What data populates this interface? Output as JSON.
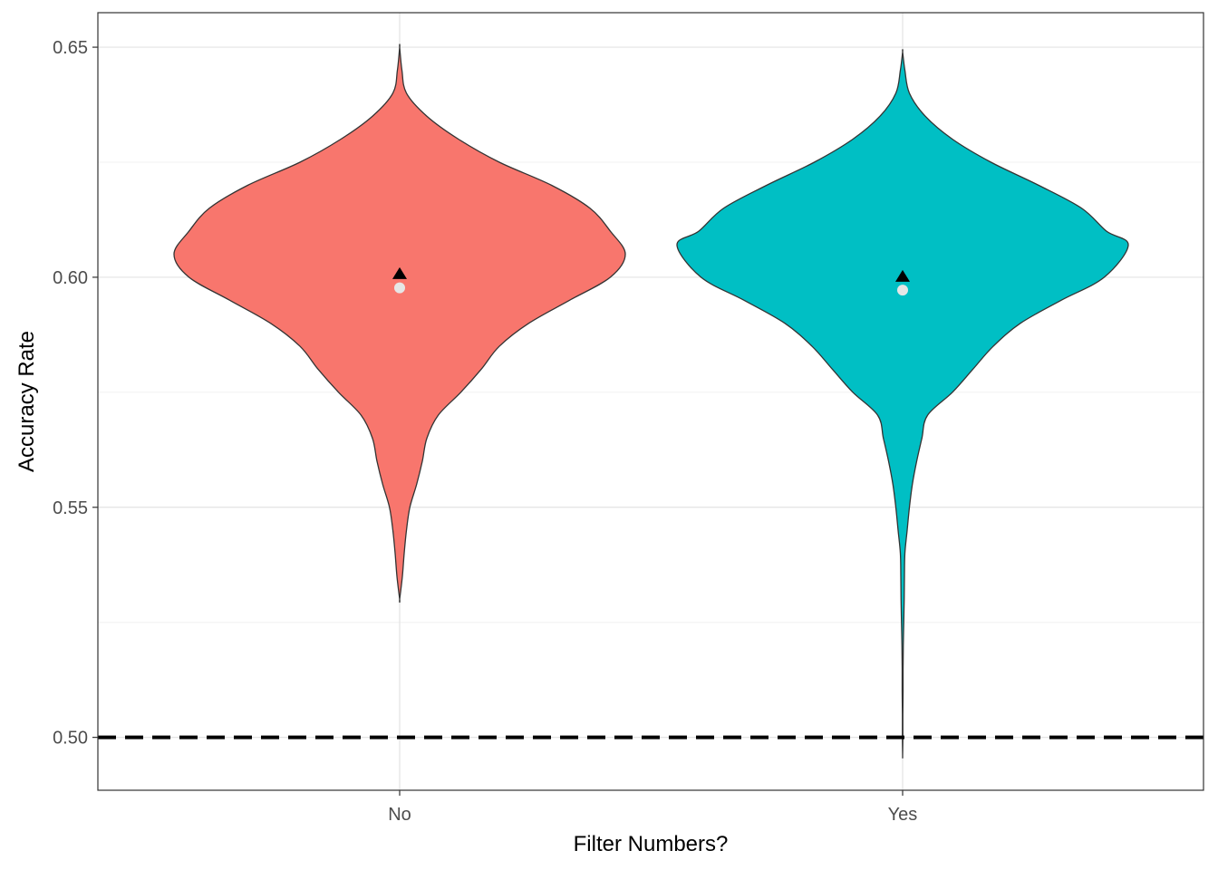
{
  "chart_data": {
    "type": "violin",
    "xlabel": "Filter Numbers?",
    "ylabel": "Accuracy Rate",
    "categories": [
      "No",
      "Yes"
    ],
    "ylim": [
      0.4885,
      0.6575
    ],
    "yticks": [
      0.5,
      0.55,
      0.6,
      0.65
    ],
    "ytick_labels": [
      "0.50",
      "0.55",
      "0.60",
      "0.65"
    ],
    "grid": true,
    "legend": "none",
    "colors": {
      "No": "#F8766D",
      "Yes": "#00BFC4",
      "outline": "#333333",
      "reference_line": "#000000",
      "median_point": "#e6e6e6",
      "mean_marker": "#000000"
    },
    "reference_line": {
      "y": 0.5,
      "style": "dashed"
    },
    "series": [
      {
        "category": "No",
        "mean": 0.6008,
        "median": 0.5977,
        "density": [
          [
            0.65,
            0.0
          ],
          [
            0.645,
            0.01
          ],
          [
            0.64,
            0.03
          ],
          [
            0.635,
            0.12
          ],
          [
            0.63,
            0.26
          ],
          [
            0.625,
            0.44
          ],
          [
            0.62,
            0.67
          ],
          [
            0.615,
            0.84
          ],
          [
            0.61,
            0.93
          ],
          [
            0.605,
            0.996
          ],
          [
            0.6,
            0.93
          ],
          [
            0.595,
            0.75
          ],
          [
            0.59,
            0.57
          ],
          [
            0.585,
            0.44
          ],
          [
            0.58,
            0.36
          ],
          [
            0.575,
            0.27
          ],
          [
            0.57,
            0.17
          ],
          [
            0.565,
            0.12
          ],
          [
            0.56,
            0.1
          ],
          [
            0.555,
            0.075
          ],
          [
            0.55,
            0.045
          ],
          [
            0.545,
            0.03
          ],
          [
            0.54,
            0.02
          ],
          [
            0.535,
            0.012
          ],
          [
            0.53,
            0.0
          ]
        ]
      },
      {
        "category": "Yes",
        "mean": 0.6002,
        "median": 0.5972,
        "density": [
          [
            0.649,
            0.0
          ],
          [
            0.645,
            0.01
          ],
          [
            0.64,
            0.03
          ],
          [
            0.635,
            0.1
          ],
          [
            0.63,
            0.22
          ],
          [
            0.625,
            0.39
          ],
          [
            0.62,
            0.6
          ],
          [
            0.615,
            0.79
          ],
          [
            0.61,
            0.9
          ],
          [
            0.607,
            0.996
          ],
          [
            0.6,
            0.89
          ],
          [
            0.595,
            0.7
          ],
          [
            0.59,
            0.52
          ],
          [
            0.585,
            0.4
          ],
          [
            0.58,
            0.31
          ],
          [
            0.575,
            0.22
          ],
          [
            0.57,
            0.11
          ],
          [
            0.565,
            0.085
          ],
          [
            0.56,
            0.062
          ],
          [
            0.555,
            0.043
          ],
          [
            0.55,
            0.03
          ],
          [
            0.545,
            0.02
          ],
          [
            0.54,
            0.01
          ],
          [
            0.535,
            0.008
          ],
          [
            0.53,
            0.007
          ],
          [
            0.525,
            0.005
          ],
          [
            0.52,
            0.003
          ],
          [
            0.515,
            0.002
          ],
          [
            0.51,
            0.002
          ],
          [
            0.505,
            0.001
          ],
          [
            0.5,
            0.001
          ],
          [
            0.496,
            0.0
          ]
        ]
      }
    ]
  }
}
